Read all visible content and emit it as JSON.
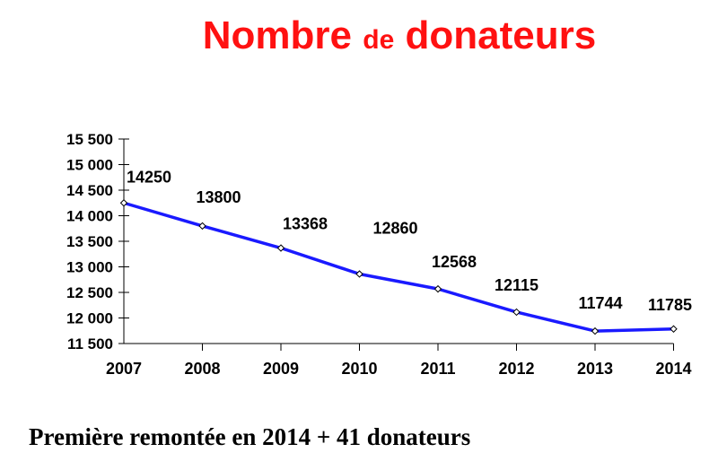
{
  "title": {
    "part1": "Nombre",
    "part2": "de",
    "part3": "donateurs"
  },
  "caption": "Première remontée en 2014 + 41 donateurs",
  "colors": {
    "title": "#ff1111",
    "line": "#1a1aff"
  },
  "chart_data": {
    "type": "line",
    "categories": [
      "2007",
      "2008",
      "2009",
      "2010",
      "2011",
      "2012",
      "2013",
      "2014"
    ],
    "values": [
      14250,
      13800,
      13368,
      12860,
      12568,
      12115,
      11744,
      11785
    ],
    "data_labels": [
      "14250",
      "13800",
      "13368",
      "12860",
      "12568",
      "12115",
      "11744",
      "11785"
    ],
    "ylim": [
      11500,
      15500
    ],
    "yticks": [
      11500,
      12000,
      12500,
      13000,
      13500,
      14000,
      14500,
      15000,
      15500
    ],
    "ytick_labels": [
      "11 500",
      "12 000",
      "12 500",
      "13 000",
      "13 500",
      "14 000",
      "14 500",
      "15 000",
      "15 500"
    ],
    "grid": false,
    "legend": "none"
  }
}
